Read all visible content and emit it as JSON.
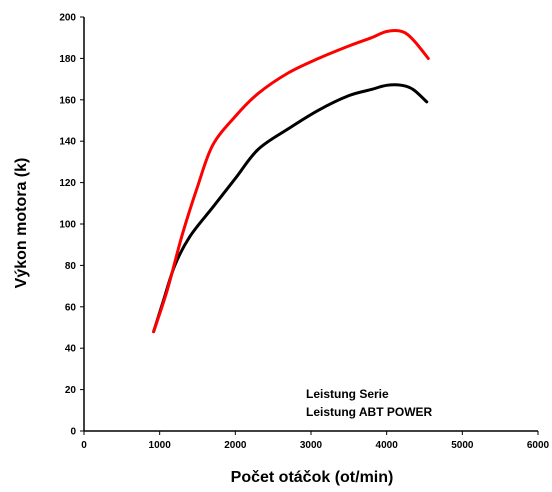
{
  "chart_data": {
    "type": "line",
    "title": "",
    "xlabel": "Počet otáčok (ot/min)",
    "ylabel": "Výkon motora (k)",
    "xlim": [
      0,
      6000
    ],
    "ylim": [
      0,
      200
    ],
    "xticks": [
      0,
      1000,
      2000,
      3000,
      4000,
      5000,
      6000
    ],
    "yticks": [
      0,
      20,
      40,
      60,
      80,
      100,
      120,
      140,
      160,
      180,
      200
    ],
    "grid": false,
    "legend_position": "bottom-right",
    "series": [
      {
        "name": "Leistung Serie",
        "color": "#000000",
        "x": [
          920,
          1050,
          1200,
          1400,
          1700,
          2000,
          2300,
          2700,
          3100,
          3500,
          3800,
          4000,
          4200,
          4350,
          4530
        ],
        "y": [
          48,
          63,
          80,
          94,
          108,
          122,
          136,
          146,
          155,
          162,
          165,
          167,
          167,
          165,
          159
        ]
      },
      {
        "name": "Leistung ABT POWER",
        "color": "#ff0000",
        "x": [
          920,
          1100,
          1300,
          1500,
          1700,
          2000,
          2300,
          2700,
          3100,
          3500,
          3800,
          4000,
          4200,
          4350,
          4550
        ],
        "y": [
          48,
          68,
          95,
          118,
          138,
          152,
          163,
          173,
          180,
          186,
          190,
          193,
          193,
          189,
          180
        ]
      }
    ]
  }
}
